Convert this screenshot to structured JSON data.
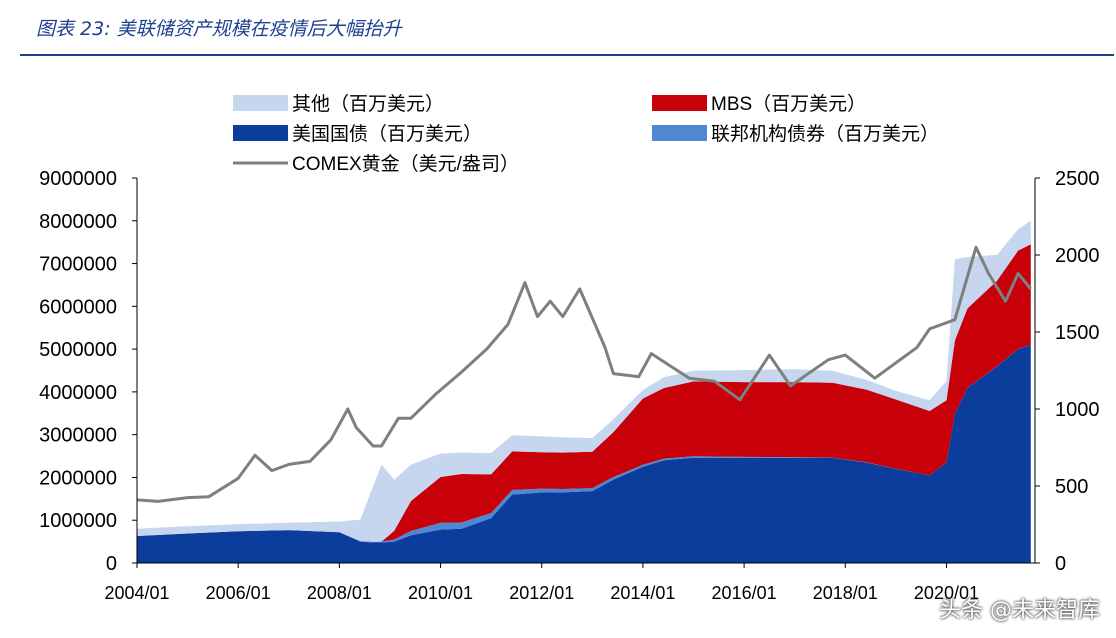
{
  "figure": {
    "title": "图表 23:  美联储资产规模在疫情后大幅抬升"
  },
  "watermark": "头条 @未来智库",
  "chart_data": {
    "type": "area",
    "title": "图表 23:  美联储资产规模在疫情后大幅抬升",
    "xlabel": "",
    "ylabel": "",
    "x_ticks": [
      "2004/01",
      "2006/01",
      "2008/01",
      "2010/01",
      "2012/01",
      "2014/01",
      "2016/01",
      "2018/01",
      "2020/01"
    ],
    "ylim_left": [
      0,
      9000000
    ],
    "y_ticks_left": [
      "9000000",
      "8000000",
      "7000000",
      "6000000",
      "5000000",
      "4000000",
      "3000000",
      "2000000",
      "1000000",
      "0"
    ],
    "ylim_right": [
      0,
      2500
    ],
    "y_ticks_right": [
      "2500",
      "2000",
      "1500",
      "1000",
      "500",
      "0"
    ],
    "grid": false,
    "legend_position": "top",
    "x": [
      "2004-01",
      "2005-01",
      "2006-01",
      "2007-01",
      "2008-01",
      "2008-06",
      "2008-09",
      "2008-11",
      "2009-02",
      "2009-06",
      "2010-01",
      "2010-06",
      "2011-01",
      "2011-06",
      "2012-01",
      "2012-06",
      "2013-01",
      "2013-06",
      "2014-01",
      "2014-06",
      "2015-01",
      "2016-01",
      "2017-01",
      "2017-10",
      "2018-06",
      "2019-01",
      "2019-09",
      "2020-01",
      "2020-03",
      "2020-06",
      "2021-01",
      "2021-06",
      "2021-09"
    ],
    "stack_order": [
      "美国国债（百万美元）",
      "联邦机构债券（百万美元）",
      "MBS（百万美元）",
      "其他（百万美元）"
    ],
    "series": [
      {
        "name": "美国国债（百万美元）",
        "kind": "stacked-area",
        "color": "#0a3d9c",
        "values": [
          630000,
          690000,
          740000,
          770000,
          720000,
          500000,
          480000,
          480000,
          500000,
          650000,
          780000,
          800000,
          1050000,
          1600000,
          1650000,
          1650000,
          1680000,
          1950000,
          2250000,
          2400000,
          2460000,
          2460000,
          2460000,
          2460000,
          2350000,
          2200000,
          2050000,
          2350000,
          3500000,
          4100000,
          4600000,
          5000000,
          5100000
        ]
      },
      {
        "name": "联邦机构债券（百万美元）",
        "kind": "stacked-area",
        "color": "#4f87d2",
        "values": [
          0,
          0,
          0,
          0,
          0,
          15000,
          15000,
          20000,
          50000,
          100000,
          160000,
          150000,
          120000,
          110000,
          90000,
          80000,
          70000,
          60000,
          45000,
          40000,
          35000,
          20000,
          10000,
          5000,
          3000,
          2500,
          2500,
          2500,
          2500,
          2500,
          2500,
          2500,
          2500
        ]
      },
      {
        "name": "MBS（百万美元）",
        "kind": "stacked-area",
        "color": "#c8000a",
        "values": [
          0,
          0,
          0,
          0,
          0,
          0,
          0,
          0,
          200000,
          700000,
          1070000,
          1130000,
          900000,
          900000,
          850000,
          850000,
          850000,
          1050000,
          1550000,
          1650000,
          1750000,
          1750000,
          1760000,
          1750000,
          1700000,
          1620000,
          1500000,
          1450000,
          1700000,
          1850000,
          2000000,
          2300000,
          2350000
        ]
      },
      {
        "name": "其他（百万美元）",
        "kind": "stacked-area",
        "color": "#c5d6ee",
        "values": [
          170000,
          170000,
          170000,
          170000,
          250000,
          500000,
          1300000,
          1800000,
          1200000,
          850000,
          550000,
          500000,
          500000,
          380000,
          370000,
          360000,
          320000,
          300000,
          200000,
          250000,
          250000,
          280000,
          300000,
          280000,
          230000,
          200000,
          250000,
          450000,
          1900000,
          1200000,
          600000,
          500000,
          550000
        ]
      },
      {
        "name": "COMEX黄金（美元/盎司）",
        "kind": "line",
        "axis": "right",
        "color": "#7f7f7f",
        "x": [
          "2004-01",
          "2004-06",
          "2005-01",
          "2005-06",
          "2006-01",
          "2006-05",
          "2006-09",
          "2007-01",
          "2007-06",
          "2007-11",
          "2008-03",
          "2008-05",
          "2008-09",
          "2008-11",
          "2009-03",
          "2009-06",
          "2009-12",
          "2010-06",
          "2010-12",
          "2011-05",
          "2011-09",
          "2011-12",
          "2012-03",
          "2012-06",
          "2012-10",
          "2013-04",
          "2013-06",
          "2013-12",
          "2014-03",
          "2014-12",
          "2015-06",
          "2015-12",
          "2016-07",
          "2016-12",
          "2017-09",
          "2018-01",
          "2018-08",
          "2019-06",
          "2019-09",
          "2020-03",
          "2020-08",
          "2020-11",
          "2021-03",
          "2021-06",
          "2021-09"
        ],
        "values": [
          410,
          400,
          425,
          430,
          550,
          700,
          600,
          640,
          660,
          800,
          1000,
          880,
          760,
          760,
          940,
          940,
          1100,
          1240,
          1390,
          1550,
          1820,
          1600,
          1700,
          1600,
          1780,
          1400,
          1230,
          1210,
          1360,
          1200,
          1180,
          1060,
          1350,
          1150,
          1320,
          1350,
          1200,
          1400,
          1520,
          1580,
          2050,
          1880,
          1700,
          1880,
          1780
        ]
      }
    ]
  }
}
